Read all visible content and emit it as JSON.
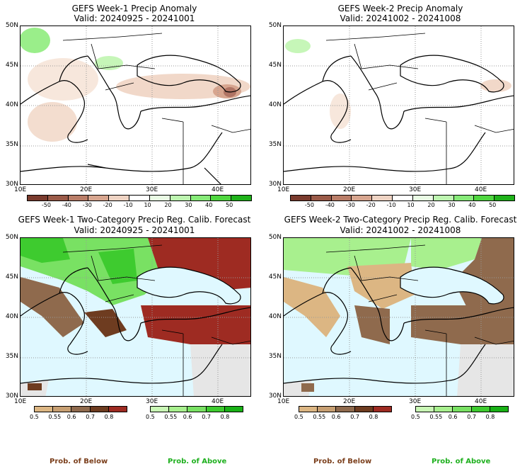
{
  "panels": [
    {
      "title": "GEFS Week-1 Precip Anomaly",
      "valid": "Valid: 20240925 - 20241001"
    },
    {
      "title": "GEFS Week-2 Precip Anomaly",
      "valid": "Valid: 20241002 - 20241008"
    },
    {
      "title": "GEFS Week-1 Two-Category Precip Reg. Calib. Forecast",
      "valid": "Valid: 20240925 - 20241001"
    },
    {
      "title": "GEFS Week-2 Two-Category Precip Reg. Calib. Forecast",
      "valid": "Valid: 20241002 - 20241008"
    }
  ],
  "lat_labels": [
    "50N",
    "45N",
    "40N",
    "35N",
    "30N"
  ],
  "lon_labels": [
    "10E",
    "20E",
    "30E",
    "40E"
  ],
  "anomaly_colorbar": {
    "ticks": [
      "-50",
      "-40",
      "-30",
      "-20",
      "-10",
      "10",
      "20",
      "30",
      "40",
      "50"
    ],
    "colors": [
      "#7a3b2e",
      "#9a5a48",
      "#b97d68",
      "#d7a58f",
      "#eed3c3",
      "#ffffff",
      "#e9fbe4",
      "#bdf5b0",
      "#86ea78",
      "#4fd63f",
      "#1fb21a"
    ]
  },
  "prob_below_colorbar": {
    "ticks": [
      "0.5",
      "0.55",
      "0.6",
      "0.7",
      "0.8"
    ],
    "colors": [
      "#dcb683",
      "#c79f72",
      "#8f6a4d",
      "#6e3c20",
      "#9e2b22"
    ]
  },
  "prob_above_colorbar": {
    "ticks": [
      "0.5",
      "0.55",
      "0.6",
      "0.7",
      "0.8"
    ],
    "colors": [
      "#c9f7b5",
      "#a8f08e",
      "#79e163",
      "#3ecb2f",
      "#19b116"
    ]
  },
  "legend": {
    "below": "Prob. of Below",
    "above": "Prob. of Above"
  }
}
